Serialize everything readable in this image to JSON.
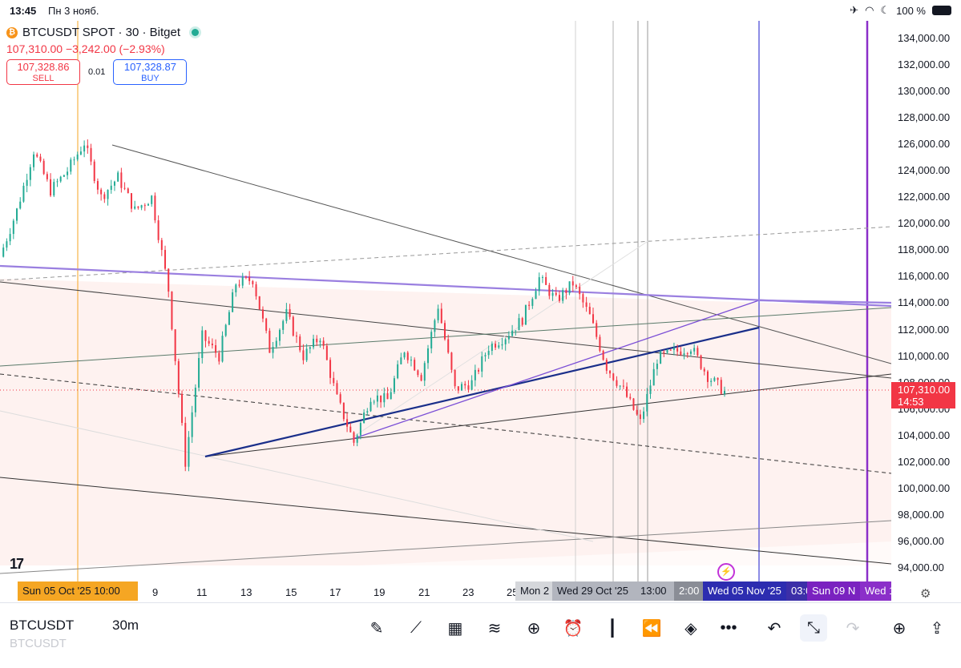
{
  "status_bar": {
    "time": "13:45",
    "date": "Пн 3 нояб.",
    "battery": "100 %"
  },
  "header": {
    "title": "BTCUSDT SPOT · 30 · Bitget",
    "price_line": "107,310.00  −3,242.00 (−2.93%)",
    "sell_price": "107,328.86",
    "sell_label": "SELL",
    "spread": "0.01",
    "buy_price": "107,328.87",
    "buy_label": "BUY"
  },
  "y_axis_labels": [
    "134,000.00",
    "132,000.00",
    "130,000.00",
    "128,000.00",
    "126,000.00",
    "124,000.00",
    "122,000.00",
    "120,000.00",
    "118,000.00",
    "116,000.00",
    "114,000.00",
    "112,000.00",
    "110,000.00",
    "108,000.00",
    "106,000.00",
    "104,000.00",
    "102,000.00",
    "100,000.00",
    "98,000.00",
    "96,000.00",
    "94,000.00"
  ],
  "y_range": [
    93000,
    135300
  ],
  "last_price": {
    "value": "107,310.00",
    "countdown": "14:53"
  },
  "x_axis": {
    "labels": [
      "9",
      "11",
      "13",
      "15",
      "17",
      "19",
      "21",
      "23",
      "25"
    ],
    "boxes": {
      "start": "Sun 05 Oct '25    10:00",
      "mon": "Mon 2",
      "wed29": "Wed 29 Oct '25",
      "t1300": "13:00",
      "t200": "2:00",
      "wed05": "Wed 05 Nov '25",
      "t0300": "03:0",
      "sun09": "Sun 09 N",
      "wed1": "Wed 1"
    }
  },
  "chart_data": {
    "type": "candlestick",
    "symbol": "BTCUSDT",
    "timeframe": "30",
    "y_range": [
      93000,
      135300
    ],
    "price_path": [
      [
        "Oct 05",
        117500
      ],
      [
        "Oct 06",
        121000
      ],
      [
        "Oct 06",
        125500
      ],
      [
        "Oct 07",
        122500
      ],
      [
        "Oct 07",
        124000
      ],
      [
        "Oct 08",
        126100
      ],
      [
        "Oct 08",
        122000
      ],
      [
        "Oct 09",
        123500
      ],
      [
        "Oct 09",
        121000
      ],
      [
        "Oct 10",
        122000
      ],
      [
        "Oct 10",
        115000
      ],
      [
        "Oct 10",
        102000
      ],
      [
        "Oct 11",
        111500
      ],
      [
        "Oct 12",
        110000
      ],
      [
        "Oct 12",
        115500
      ],
      [
        "Oct 13",
        115800
      ],
      [
        "Oct 14",
        110500
      ],
      [
        "Oct 15",
        113200
      ],
      [
        "Oct 15",
        110000
      ],
      [
        "Oct 16",
        111500
      ],
      [
        "Oct 17",
        106800
      ],
      [
        "Oct 17",
        103500
      ],
      [
        "Oct 18",
        107000
      ],
      [
        "Oct 19",
        106700
      ],
      [
        "Oct 20",
        110500
      ],
      [
        "Oct 21",
        108500
      ],
      [
        "Oct 21",
        113800
      ],
      [
        "Oct 22",
        107500
      ],
      [
        "Oct 23",
        108000
      ],
      [
        "Oct 24",
        110700
      ],
      [
        "Oct 25",
        111500
      ],
      [
        "Oct 26",
        112800
      ],
      [
        "Oct 27",
        115900
      ],
      [
        "Oct 27",
        114200
      ],
      [
        "Oct 28",
        115500
      ],
      [
        "Oct 29",
        113000
      ],
      [
        "Oct 29",
        109200
      ],
      [
        "Oct 30",
        107400
      ],
      [
        "Oct 30",
        105000
      ],
      [
        "Oct 31",
        109800
      ],
      [
        "Nov 01",
        110300
      ],
      [
        "Nov 02",
        110700
      ],
      [
        "Nov 03",
        108500
      ],
      [
        "Nov 03",
        107310
      ]
    ],
    "last": 107310,
    "change": -3242,
    "change_pct": -2.93
  }
}
